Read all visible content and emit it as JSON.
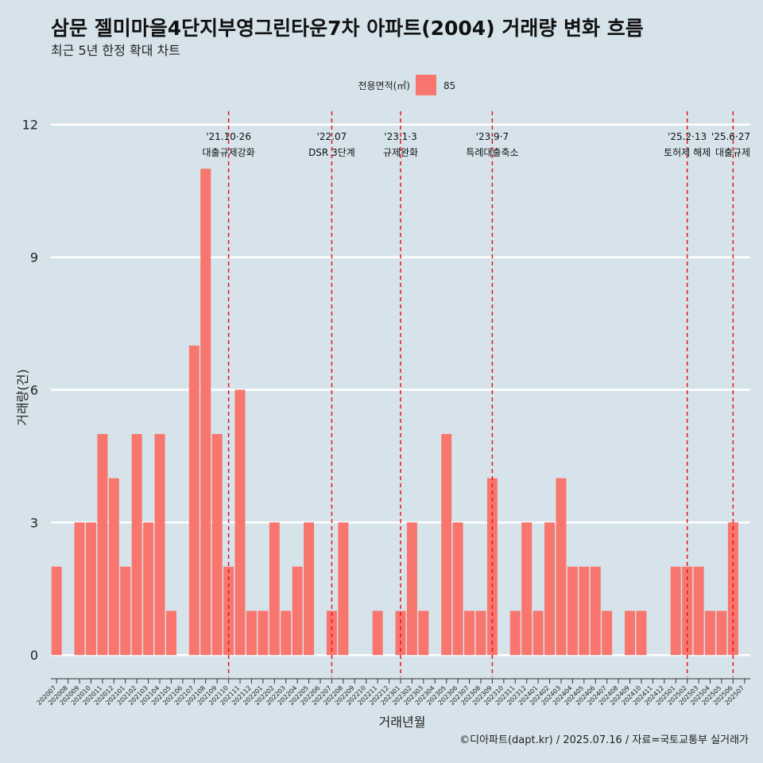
{
  "title": "삼문 젤미마을4단지부영그린타운7차 아파트(2004) 거래량 변화 흐름",
  "subtitle": "최근 5년 한정 확대 차트",
  "caption": "©디아파트(dapt.kr) / 2025.07.16 / 자료=국토교통부 실거래가",
  "colors": {
    "background": "#d6e3ea",
    "bar": "#f8766d",
    "gridline": "#ffffff",
    "event_line": "#e8141c"
  },
  "chart_data": {
    "type": "bar",
    "xlabel": "거래년월",
    "ylabel": "거래량(건)",
    "ylim": [
      -0.5,
      12.3
    ],
    "yticks": [
      0,
      3,
      6,
      9,
      12
    ],
    "grid": true,
    "legend": {
      "title": "전용면적(㎡)",
      "position": "top",
      "items": [
        "85"
      ]
    },
    "categories": [
      "202007",
      "202008",
      "202009",
      "202010",
      "202011",
      "202012",
      "202101",
      "202102",
      "202103",
      "202104",
      "202105",
      "202106",
      "202107",
      "202108",
      "202109",
      "202110",
      "202111",
      "202112",
      "202201",
      "202202",
      "202203",
      "202204",
      "202205",
      "202206",
      "202207",
      "202208",
      "202209",
      "202210",
      "202211",
      "202212",
      "202301",
      "202302",
      "202303",
      "202304",
      "202305",
      "202306",
      "202307",
      "202308",
      "202309",
      "202310",
      "202311",
      "202312",
      "202401",
      "202402",
      "202403",
      "202404",
      "202405",
      "202406",
      "202407",
      "202408",
      "202409",
      "202410",
      "202411",
      "202412",
      "202501",
      "202502",
      "202503",
      "202504",
      "202505",
      "202506",
      "202507"
    ],
    "series": [
      {
        "name": "85",
        "values": [
          2,
          0,
          3,
          3,
          5,
          4,
          2,
          5,
          3,
          5,
          1,
          0,
          7,
          11,
          5,
          2,
          6,
          1,
          1,
          3,
          1,
          2,
          3,
          0,
          1,
          3,
          0,
          0,
          1,
          0,
          1,
          3,
          1,
          0,
          5,
          3,
          1,
          1,
          4,
          0,
          1,
          3,
          1,
          3,
          4,
          2,
          2,
          2,
          1,
          0,
          1,
          1,
          0,
          0,
          2,
          2,
          2,
          1,
          1,
          3,
          0
        ]
      }
    ],
    "annotations": [
      {
        "category": "202110",
        "date": "'21.10·26",
        "label": "대출규제강화"
      },
      {
        "category": "202207",
        "date": "'22.07",
        "label": "DSR 3단계"
      },
      {
        "category": "202301",
        "date": "'23.1·3",
        "label": "규제완화"
      },
      {
        "category": "202309",
        "date": "'23.9·7",
        "label": "특례대출축소"
      },
      {
        "category": "202502",
        "date": "'25.2·13",
        "label": "토허제 해제"
      },
      {
        "category": "202506",
        "date": "'25.6·27",
        "label": "대출규제"
      }
    ]
  }
}
